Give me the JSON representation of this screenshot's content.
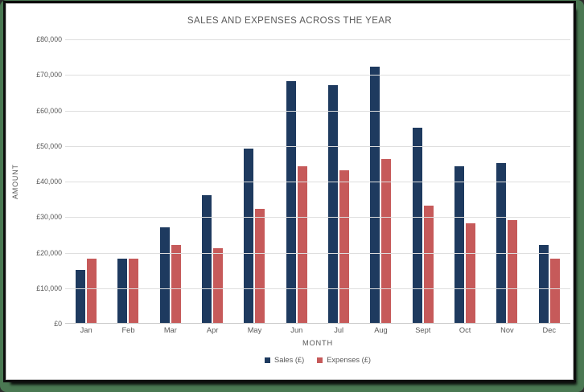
{
  "frame": {
    "background_color": "#4A7852",
    "border_color": "#0D0D0D",
    "card_color": "#FFFFFF"
  },
  "colors": {
    "title_text": "#595959",
    "axis_text": "#595959",
    "gridline": "#DEDEDE",
    "baseline": "#C9C9C9"
  },
  "chart_data": {
    "type": "bar",
    "title": "SALES AND EXPENSES ACROSS THE YEAR",
    "xlabel": "MONTH",
    "ylabel": "AMOUNT",
    "ylim": [
      0,
      80000
    ],
    "grid": true,
    "legend_position": "bottom",
    "categories": [
      "Jan",
      "Feb",
      "Mar",
      "Apr",
      "May",
      "Jun",
      "Jul",
      "Aug",
      "Sept",
      "Oct",
      "Nov",
      "Dec"
    ],
    "series": [
      {
        "name": "Sales (£)",
        "key": "sales",
        "color": "#1E3A5F",
        "values": [
          15000,
          18000,
          27000,
          36000,
          49000,
          68000,
          67000,
          72000,
          55000,
          44000,
          45000,
          22000
        ]
      },
      {
        "name": "Expenses (£)",
        "key": "expenses",
        "color": "#C65A5A",
        "values": [
          18000,
          18000,
          22000,
          21000,
          32000,
          44000,
          43000,
          46000,
          33000,
          28000,
          29000,
          18000
        ]
      }
    ],
    "y_ticks": [
      {
        "label": "£0",
        "value": 0
      },
      {
        "label": "£10,000",
        "value": 10000
      },
      {
        "label": "£20,000",
        "value": 20000
      },
      {
        "label": "£30,000",
        "value": 30000
      },
      {
        "label": "£40,000",
        "value": 40000
      },
      {
        "label": "£50,000",
        "value": 50000
      },
      {
        "label": "£60,000",
        "value": 60000
      },
      {
        "label": "£70,000",
        "value": 70000
      },
      {
        "label": "£80,000",
        "value": 80000
      }
    ]
  }
}
